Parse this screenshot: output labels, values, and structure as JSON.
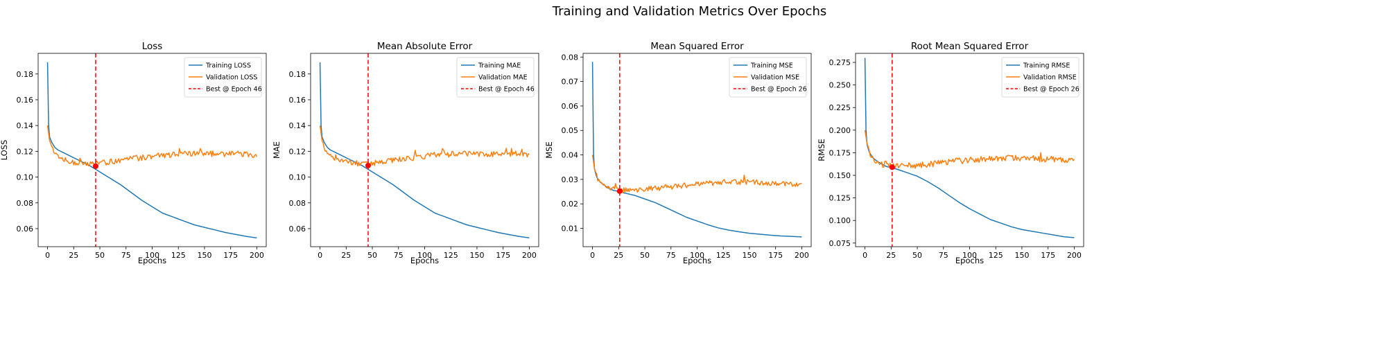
{
  "figure": {
    "suptitle": "Training and Validation Metrics Over Epochs"
  },
  "chart_data": [
    {
      "type": "line",
      "title": "Loss",
      "xlabel": "Epochs",
      "ylabel": "LOSS",
      "xlim": [
        -9,
        209
      ],
      "ylim": [
        0.046,
        0.196
      ],
      "xticks": [
        0,
        25,
        50,
        75,
        100,
        125,
        150,
        175,
        200
      ],
      "xtick_labels": [
        "0",
        "25",
        "50",
        "75",
        "100",
        "125",
        "150",
        "175",
        "200"
      ],
      "yticks": [
        0.06,
        0.08,
        0.1,
        0.12,
        0.14,
        0.16,
        0.18
      ],
      "ytick_labels": [
        "0.06",
        "0.08",
        "0.10",
        "0.12",
        "0.14",
        "0.16",
        "0.18"
      ],
      "legend_position": "top-right",
      "series": [
        {
          "name": "Training LOSS",
          "color": "#1f77b4",
          "points": [
            [
              0,
              0.189
            ],
            [
              1,
              0.14
            ],
            [
              2,
              0.131
            ],
            [
              4,
              0.127
            ],
            [
              7,
              0.123
            ],
            [
              10,
              0.121
            ],
            [
              15,
              0.119
            ],
            [
              20,
              0.117
            ],
            [
              30,
              0.113
            ],
            [
              40,
              0.109
            ],
            [
              46,
              0.106
            ],
            [
              50,
              0.104
            ],
            [
              60,
              0.099
            ],
            [
              70,
              0.094
            ],
            [
              80,
              0.088
            ],
            [
              90,
              0.082
            ],
            [
              100,
              0.077
            ],
            [
              110,
              0.072
            ],
            [
              120,
              0.069
            ],
            [
              130,
              0.066
            ],
            [
              140,
              0.063
            ],
            [
              150,
              0.061
            ],
            [
              160,
              0.059
            ],
            [
              170,
              0.057
            ],
            [
              180,
              0.0555
            ],
            [
              190,
              0.054
            ],
            [
              200,
              0.0528
            ]
          ]
        },
        {
          "name": "Validation LOSS",
          "color": "#ff7f0e",
          "base": [
            [
              0,
              0.14
            ],
            [
              2,
              0.128
            ],
            [
              5,
              0.121
            ],
            [
              10,
              0.116
            ],
            [
              20,
              0.112
            ],
            [
              30,
              0.111
            ],
            [
              40,
              0.1105
            ],
            [
              46,
              0.111
            ],
            [
              55,
              0.111
            ],
            [
              70,
              0.113
            ],
            [
              90,
              0.115
            ],
            [
              110,
              0.117
            ],
            [
              130,
              0.118
            ],
            [
              150,
              0.118
            ],
            [
              170,
              0.118
            ],
            [
              190,
              0.118
            ],
            [
              200,
              0.117
            ]
          ],
          "noise": 0.0022
        }
      ],
      "best": {
        "epoch": 46,
        "value": 0.1085,
        "label": "Best @ Epoch 46",
        "color": "#ff0000"
      }
    },
    {
      "type": "line",
      "title": "Mean Absolute Error",
      "xlabel": "Epochs",
      "ylabel": "MAE",
      "xlim": [
        -9,
        209
      ],
      "ylim": [
        0.046,
        0.196
      ],
      "xticks": [
        0,
        25,
        50,
        75,
        100,
        125,
        150,
        175,
        200
      ],
      "xtick_labels": [
        "0",
        "25",
        "50",
        "75",
        "100",
        "125",
        "150",
        "175",
        "200"
      ],
      "yticks": [
        0.06,
        0.08,
        0.1,
        0.12,
        0.14,
        0.16,
        0.18
      ],
      "ytick_labels": [
        "0.06",
        "0.08",
        "0.10",
        "0.12",
        "0.14",
        "0.16",
        "0.18"
      ],
      "legend_position": "top-right",
      "series": [
        {
          "name": "Training MAE",
          "color": "#1f77b4",
          "points": [
            [
              0,
              0.189
            ],
            [
              1,
              0.14
            ],
            [
              2,
              0.131
            ],
            [
              4,
              0.127
            ],
            [
              7,
              0.123
            ],
            [
              10,
              0.121
            ],
            [
              15,
              0.119
            ],
            [
              20,
              0.117
            ],
            [
              30,
              0.113
            ],
            [
              40,
              0.109
            ],
            [
              46,
              0.106
            ],
            [
              50,
              0.104
            ],
            [
              60,
              0.099
            ],
            [
              70,
              0.094
            ],
            [
              80,
              0.088
            ],
            [
              90,
              0.082
            ],
            [
              100,
              0.077
            ],
            [
              110,
              0.072
            ],
            [
              120,
              0.069
            ],
            [
              130,
              0.066
            ],
            [
              140,
              0.063
            ],
            [
              150,
              0.061
            ],
            [
              160,
              0.059
            ],
            [
              170,
              0.057
            ],
            [
              180,
              0.0555
            ],
            [
              190,
              0.054
            ],
            [
              200,
              0.0528
            ]
          ]
        },
        {
          "name": "Validation MAE",
          "color": "#ff7f0e",
          "base": [
            [
              0,
              0.14
            ],
            [
              2,
              0.128
            ],
            [
              5,
              0.121
            ],
            [
              10,
              0.116
            ],
            [
              20,
              0.112
            ],
            [
              30,
              0.111
            ],
            [
              40,
              0.1105
            ],
            [
              46,
              0.111
            ],
            [
              55,
              0.111
            ],
            [
              70,
              0.113
            ],
            [
              90,
              0.115
            ],
            [
              110,
              0.117
            ],
            [
              130,
              0.118
            ],
            [
              150,
              0.118
            ],
            [
              170,
              0.118
            ],
            [
              190,
              0.118
            ],
            [
              200,
              0.117
            ]
          ],
          "noise": 0.0022
        }
      ],
      "best": {
        "epoch": 46,
        "value": 0.109,
        "label": "Best @ Epoch 46",
        "color": "#ff0000"
      }
    },
    {
      "type": "line",
      "title": "Mean Squared Error",
      "xlabel": "Epochs",
      "ylabel": "MSE",
      "xlim": [
        -9,
        209
      ],
      "ylim": [
        0.0025,
        0.0815
      ],
      "xticks": [
        0,
        25,
        50,
        75,
        100,
        125,
        150,
        175,
        200
      ],
      "xtick_labels": [
        "0",
        "25",
        "50",
        "75",
        "100",
        "125",
        "150",
        "175",
        "200"
      ],
      "yticks": [
        0.01,
        0.02,
        0.03,
        0.04,
        0.05,
        0.06,
        0.07,
        0.08
      ],
      "ytick_labels": [
        "0.01",
        "0.02",
        "0.03",
        "0.04",
        "0.05",
        "0.06",
        "0.07",
        "0.08"
      ],
      "legend_position": "top-right",
      "series": [
        {
          "name": "Training MSE",
          "color": "#1f77b4",
          "points": [
            [
              0,
              0.078
            ],
            [
              1,
              0.04
            ],
            [
              2,
              0.034
            ],
            [
              4,
              0.031
            ],
            [
              7,
              0.029
            ],
            [
              10,
              0.028
            ],
            [
              15,
              0.0265
            ],
            [
              20,
              0.0255
            ],
            [
              26,
              0.025
            ],
            [
              30,
              0.0245
            ],
            [
              40,
              0.0235
            ],
            [
              50,
              0.022
            ],
            [
              60,
              0.0205
            ],
            [
              70,
              0.0185
            ],
            [
              80,
              0.0165
            ],
            [
              90,
              0.0145
            ],
            [
              100,
              0.013
            ],
            [
              110,
              0.0115
            ],
            [
              120,
              0.0102
            ],
            [
              130,
              0.0093
            ],
            [
              140,
              0.0086
            ],
            [
              150,
              0.008
            ],
            [
              160,
              0.0076
            ],
            [
              170,
              0.0072
            ],
            [
              180,
              0.0069
            ],
            [
              190,
              0.0067
            ],
            [
              200,
              0.0065
            ]
          ]
        },
        {
          "name": "Validation MSE",
          "color": "#ff7f0e",
          "base": [
            [
              0,
              0.04
            ],
            [
              2,
              0.034
            ],
            [
              5,
              0.03
            ],
            [
              10,
              0.028
            ],
            [
              20,
              0.026
            ],
            [
              26,
              0.0255
            ],
            [
              35,
              0.0255
            ],
            [
              50,
              0.026
            ],
            [
              75,
              0.027
            ],
            [
              100,
              0.028
            ],
            [
              125,
              0.029
            ],
            [
              150,
              0.0288
            ],
            [
              175,
              0.0285
            ],
            [
              200,
              0.0278
            ]
          ],
          "noise": 0.0011
        }
      ],
      "best": {
        "epoch": 26,
        "value": 0.0252,
        "label": "Best @ Epoch 26",
        "color": "#ff0000"
      }
    },
    {
      "type": "line",
      "title": "Root Mean Squared Error",
      "xlabel": "Epochs",
      "ylabel": "RMSE",
      "xlim": [
        -9,
        209
      ],
      "ylim": [
        0.071,
        0.285
      ],
      "xticks": [
        0,
        25,
        50,
        75,
        100,
        125,
        150,
        175,
        200
      ],
      "xtick_labels": [
        "0",
        "25",
        "50",
        "75",
        "100",
        "125",
        "150",
        "175",
        "200"
      ],
      "yticks": [
        0.075,
        0.1,
        0.125,
        0.15,
        0.175,
        0.2,
        0.225,
        0.25,
        0.275
      ],
      "ytick_labels": [
        "0.075",
        "0.100",
        "0.125",
        "0.150",
        "0.175",
        "0.200",
        "0.225",
        "0.250",
        "0.275"
      ],
      "legend_position": "top-right",
      "series": [
        {
          "name": "Training RMSE",
          "color": "#1f77b4",
          "points": [
            [
              0,
              0.28
            ],
            [
              1,
              0.2
            ],
            [
              2,
              0.184
            ],
            [
              4,
              0.176
            ],
            [
              7,
              0.17
            ],
            [
              10,
              0.167
            ],
            [
              15,
              0.163
            ],
            [
              20,
              0.16
            ],
            [
              26,
              0.158
            ],
            [
              30,
              0.157
            ],
            [
              40,
              0.153
            ],
            [
              50,
              0.149
            ],
            [
              60,
              0.143
            ],
            [
              70,
              0.136
            ],
            [
              80,
              0.128
            ],
            [
              90,
              0.12
            ],
            [
              100,
              0.113
            ],
            [
              110,
              0.107
            ],
            [
              120,
              0.101
            ],
            [
              130,
              0.097
            ],
            [
              140,
              0.093
            ],
            [
              150,
              0.09
            ],
            [
              160,
              0.088
            ],
            [
              170,
              0.086
            ],
            [
              180,
              0.084
            ],
            [
              190,
              0.082
            ],
            [
              200,
              0.081
            ]
          ]
        },
        {
          "name": "Validation RMSE",
          "color": "#ff7f0e",
          "base": [
            [
              0,
              0.2
            ],
            [
              2,
              0.185
            ],
            [
              5,
              0.172
            ],
            [
              10,
              0.166
            ],
            [
              20,
              0.161
            ],
            [
              26,
              0.16
            ],
            [
              35,
              0.16
            ],
            [
              50,
              0.161
            ],
            [
              75,
              0.164
            ],
            [
              100,
              0.167
            ],
            [
              125,
              0.169
            ],
            [
              150,
              0.169
            ],
            [
              175,
              0.168
            ],
            [
              200,
              0.167
            ]
          ],
          "noise": 0.0035
        }
      ],
      "best": {
        "epoch": 26,
        "value": 0.159,
        "label": "Best @ Epoch 26",
        "color": "#ff0000"
      }
    }
  ]
}
